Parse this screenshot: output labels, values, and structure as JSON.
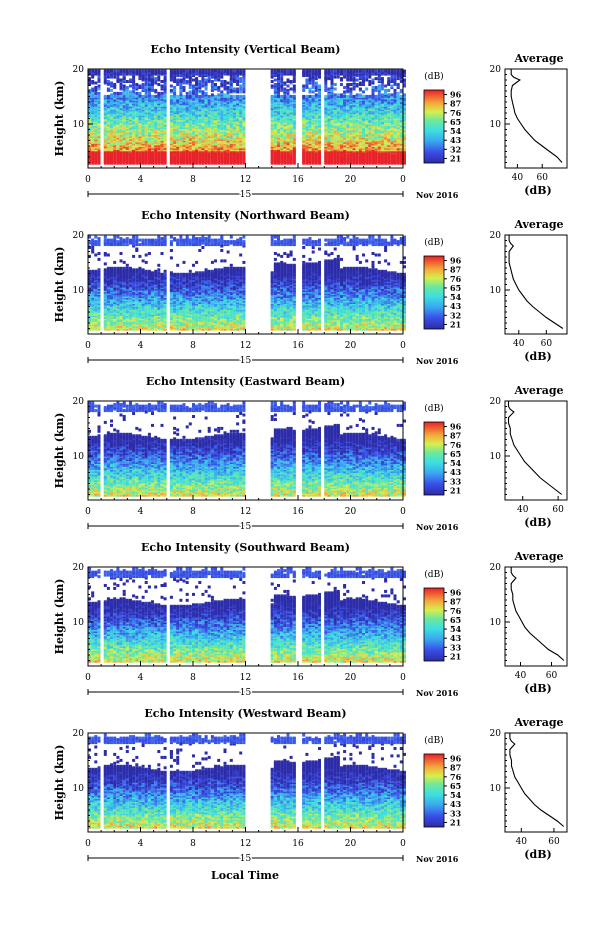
{
  "figure": {
    "xlabel": "Local Time",
    "date_label": "Nov 2016",
    "day_label": "15",
    "x_ticks": [
      "0",
      "4",
      "8",
      "12",
      "16",
      "20",
      "0"
    ],
    "y_ticks": [
      "10",
      "20"
    ],
    "ylabel": "Height (km)",
    "colorbar_unit": "(dB)",
    "average_title": "Average",
    "average_xlabel": "(dB)"
  },
  "chart_data": [
    {
      "type": "heatmap",
      "title": "Echo Intensity (Vertical Beam)",
      "xlabel": "Local Time",
      "ylabel": "Height (km)",
      "xlim": [
        0,
        24
      ],
      "ylim": [
        2,
        20
      ],
      "colorbar": {
        "unit": "(dB)",
        "ticks": [
          "96",
          "87",
          "76",
          "65",
          "54",
          "43",
          "32",
          "21"
        ],
        "range": [
          21,
          96
        ]
      },
      "data_gaps_hours": [
        [
          0.9,
          1.2
        ],
        [
          5.8,
          6.2
        ],
        [
          12.0,
          13.9
        ],
        [
          15.8,
          16.1
        ],
        [
          17.7,
          18.0
        ]
      ],
      "average_profile": {
        "title": "Average",
        "xlabel": "(dB)",
        "xticks": [
          "40",
          "60"
        ],
        "xlim": [
          30,
          80
        ],
        "points": [
          [
            3.0,
            76
          ],
          [
            4.0,
            72
          ],
          [
            5.0,
            66
          ],
          [
            6.0,
            60
          ],
          [
            7.0,
            54
          ],
          [
            8.0,
            50
          ],
          [
            9.0,
            46
          ],
          [
            10.0,
            43
          ],
          [
            11.0,
            40
          ],
          [
            12.0,
            38
          ],
          [
            13.0,
            37
          ],
          [
            14.0,
            36
          ],
          [
            15.0,
            35
          ],
          [
            16.0,
            35
          ],
          [
            17.0,
            36
          ],
          [
            18.0,
            42
          ],
          [
            18.5,
            37
          ],
          [
            19.0,
            35
          ],
          [
            20.0,
            35
          ]
        ]
      }
    },
    {
      "type": "heatmap",
      "title": "Echo Intensity (Northward Beam)",
      "xlabel": "Local Time",
      "ylabel": "Height (km)",
      "xlim": [
        0,
        24
      ],
      "ylim": [
        2,
        20
      ],
      "colorbar": {
        "unit": "(dB)",
        "ticks": [
          "96",
          "87",
          "76",
          "65",
          "54",
          "43",
          "32",
          "21"
        ],
        "range": [
          21,
          96
        ]
      },
      "data_gaps_hours": [
        [
          0.9,
          1.2
        ],
        [
          5.8,
          6.2
        ],
        [
          12.0,
          13.9
        ],
        [
          15.8,
          16.1
        ],
        [
          17.7,
          18.0
        ]
      ],
      "average_profile": {
        "title": "Average",
        "xlabel": "(dB)",
        "xticks": [
          "40",
          "60"
        ],
        "xlim": [
          30,
          75
        ],
        "points": [
          [
            3.0,
            72
          ],
          [
            4.0,
            66
          ],
          [
            5.0,
            60
          ],
          [
            6.0,
            55
          ],
          [
            7.0,
            50
          ],
          [
            8.0,
            46
          ],
          [
            9.0,
            43
          ],
          [
            10.0,
            40
          ],
          [
            11.0,
            38
          ],
          [
            12.0,
            36
          ],
          [
            13.0,
            35
          ],
          [
            14.0,
            34
          ],
          [
            15.0,
            33
          ],
          [
            16.0,
            33
          ],
          [
            17.0,
            33
          ],
          [
            18.0,
            36
          ],
          [
            18.5,
            34
          ],
          [
            19.0,
            33
          ],
          [
            20.0,
            33
          ]
        ]
      }
    },
    {
      "type": "heatmap",
      "title": "Echo Intensity (Eastward Beam)",
      "xlabel": "Local Time",
      "ylabel": "Height (km)",
      "xlim": [
        0,
        24
      ],
      "ylim": [
        2,
        20
      ],
      "colorbar": {
        "unit": "(dB)",
        "ticks": [
          "96",
          "87",
          "76",
          "65",
          "54",
          "43",
          "33",
          "21"
        ],
        "range": [
          21,
          96
        ]
      },
      "data_gaps_hours": [
        [
          0.9,
          1.2
        ],
        [
          5.8,
          6.2
        ],
        [
          12.0,
          13.9
        ],
        [
          15.8,
          16.1
        ],
        [
          17.7,
          18.0
        ]
      ],
      "average_profile": {
        "title": "Average",
        "xlabel": "(dB)",
        "xticks": [
          "40",
          "60"
        ],
        "xlim": [
          30,
          65
        ],
        "points": [
          [
            3.0,
            62
          ],
          [
            4.0,
            58
          ],
          [
            5.0,
            54
          ],
          [
            6.0,
            50
          ],
          [
            7.0,
            47
          ],
          [
            8.0,
            44
          ],
          [
            9.0,
            41
          ],
          [
            10.0,
            39
          ],
          [
            11.0,
            37
          ],
          [
            12.0,
            35
          ],
          [
            13.0,
            34
          ],
          [
            14.0,
            33
          ],
          [
            15.0,
            33
          ],
          [
            16.0,
            32
          ],
          [
            17.0,
            32
          ],
          [
            18.0,
            35
          ],
          [
            18.5,
            33
          ],
          [
            19.0,
            32
          ],
          [
            20.0,
            32
          ]
        ]
      }
    },
    {
      "type": "heatmap",
      "title": "Echo Intensity (Southward Beam)",
      "xlabel": "Local Time",
      "ylabel": "Height (km)",
      "xlim": [
        0,
        24
      ],
      "ylim": [
        2,
        20
      ],
      "colorbar": {
        "unit": "(dB)",
        "ticks": [
          "96",
          "87",
          "76",
          "65",
          "54",
          "43",
          "33",
          "21"
        ],
        "range": [
          21,
          96
        ]
      },
      "data_gaps_hours": [
        [
          0.9,
          1.2
        ],
        [
          5.8,
          6.2
        ],
        [
          12.0,
          13.9
        ],
        [
          15.8,
          16.1
        ],
        [
          17.7,
          18.0
        ]
      ],
      "average_profile": {
        "title": "Average",
        "xlabel": "(dB)",
        "xticks": [
          "40",
          "60"
        ],
        "xlim": [
          30,
          70
        ],
        "points": [
          [
            3.0,
            68
          ],
          [
            4.0,
            64
          ],
          [
            5.0,
            58
          ],
          [
            6.0,
            54
          ],
          [
            7.0,
            50
          ],
          [
            8.0,
            46
          ],
          [
            9.0,
            43
          ],
          [
            10.0,
            41
          ],
          [
            11.0,
            39
          ],
          [
            12.0,
            37
          ],
          [
            13.0,
            36
          ],
          [
            14.0,
            35
          ],
          [
            15.0,
            35
          ],
          [
            16.0,
            34
          ],
          [
            17.0,
            34
          ],
          [
            18.0,
            37
          ],
          [
            18.5,
            35
          ],
          [
            19.0,
            34
          ],
          [
            20.0,
            34
          ]
        ]
      }
    },
    {
      "type": "heatmap",
      "title": "Echo Intensity (Westward Beam)",
      "xlabel": "Local Time",
      "ylabel": "Height (km)",
      "xlim": [
        0,
        24
      ],
      "ylim": [
        2,
        20
      ],
      "colorbar": {
        "unit": "(dB)",
        "ticks": [
          "96",
          "87",
          "76",
          "65",
          "54",
          "43",
          "33",
          "21"
        ],
        "range": [
          21,
          96
        ]
      },
      "data_gaps_hours": [
        [
          0.9,
          1.2
        ],
        [
          5.8,
          6.2
        ],
        [
          12.0,
          13.9
        ],
        [
          15.8,
          16.1
        ],
        [
          17.7,
          18.0
        ]
      ],
      "average_profile": {
        "title": "Average",
        "xlabel": "(dB)",
        "xticks": [
          "40",
          "60"
        ],
        "xlim": [
          30,
          68
        ],
        "points": [
          [
            3.0,
            66
          ],
          [
            4.0,
            62
          ],
          [
            5.0,
            57
          ],
          [
            6.0,
            52
          ],
          [
            7.0,
            48
          ],
          [
            8.0,
            45
          ],
          [
            9.0,
            42
          ],
          [
            10.0,
            40
          ],
          [
            11.0,
            38
          ],
          [
            12.0,
            36
          ],
          [
            13.0,
            35
          ],
          [
            14.0,
            34
          ],
          [
            15.0,
            34
          ],
          [
            16.0,
            33
          ],
          [
            17.0,
            33
          ],
          [
            18.0,
            36
          ],
          [
            18.5,
            34
          ],
          [
            19.0,
            33
          ],
          [
            20.0,
            33
          ]
        ]
      }
    }
  ]
}
